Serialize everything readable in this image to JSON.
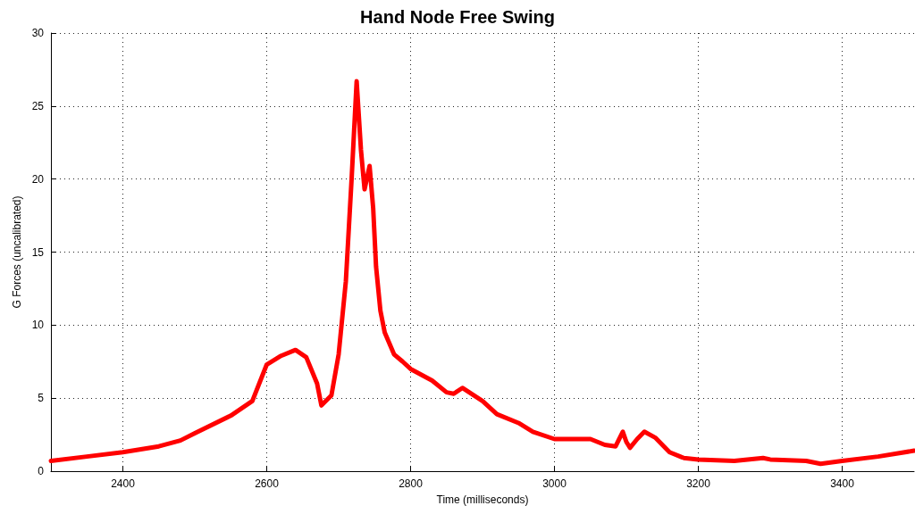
{
  "chart_data": {
    "type": "line",
    "title": "Hand Node Free Swing",
    "xlabel": "Time (milliseconds)",
    "ylabel": "G Forces (uncalibrated)",
    "x": [
      2300,
      2350,
      2400,
      2450,
      2480,
      2500,
      2550,
      2580,
      2600,
      2620,
      2640,
      2655,
      2670,
      2676,
      2690,
      2700,
      2710,
      2718,
      2725,
      2731,
      2736,
      2743,
      2748,
      2752,
      2758,
      2764,
      2777,
      2789,
      2800,
      2830,
      2850,
      2860,
      2872,
      2900,
      2920,
      2950,
      2970,
      3000,
      3050,
      3070,
      3085,
      3095,
      3100,
      3105,
      3115,
      3125,
      3140,
      3160,
      3180,
      3200,
      3250,
      3290,
      3300,
      3350,
      3370,
      3400,
      3450,
      3500
    ],
    "series": [
      {
        "color": "#ff0000",
        "values": [
          0.7,
          1.0,
          1.3,
          1.7,
          2.1,
          2.6,
          3.8,
          4.8,
          7.3,
          7.9,
          8.3,
          7.8,
          6.0,
          4.5,
          5.2,
          8.0,
          13,
          20,
          26.7,
          22,
          19.3,
          20.9,
          18,
          14,
          11,
          9.5,
          8.0,
          7.5,
          7.0,
          6.2,
          5.4,
          5.3,
          5.7,
          4.8,
          3.9,
          3.3,
          2.7,
          2.2,
          2.2,
          1.8,
          1.7,
          2.7,
          2.0,
          1.6,
          2.2,
          2.7,
          2.3,
          1.3,
          0.9,
          0.8,
          0.7,
          0.9,
          0.8,
          0.7,
          0.5,
          0.7,
          1.0,
          1.4
        ]
      }
    ],
    "xlim": [
      2300,
      3500
    ],
    "xticks": [
      2400,
      2600,
      2800,
      3000,
      3200,
      3400
    ],
    "ylim": [
      0,
      30
    ],
    "yticks": [
      0,
      5,
      10,
      15,
      20,
      25,
      30
    ],
    "grid": true,
    "marker": "none",
    "line_style": "solid"
  }
}
